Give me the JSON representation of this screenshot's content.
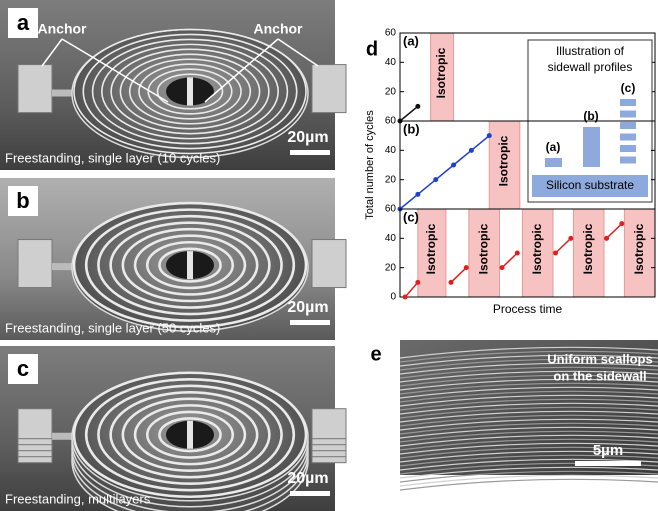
{
  "panels": [
    {
      "label": "a",
      "anchors": [
        "Anchor",
        "Anchor"
      ],
      "scale_bar": "20µm",
      "caption": "Freestanding, single layer (10 cycles)"
    },
    {
      "label": "b",
      "scale_bar": "20µm",
      "caption": "Freestanding, single layer (50 cycles)"
    },
    {
      "label": "c",
      "scale_bar": "20µm",
      "caption": "Freestanding, multilayers"
    },
    {
      "label": "d"
    },
    {
      "label": "e",
      "caption_lines": [
        "Uniform scallops",
        "on the sidewall"
      ],
      "scale_bar": "5µm"
    }
  ],
  "chart_data": [
    {
      "type": "line",
      "title": "(a)",
      "xlim": [
        0,
        100
      ],
      "ylim": [
        0,
        60
      ],
      "yticks": [
        20,
        40,
        60
      ],
      "x": [
        0,
        7
      ],
      "series": [
        {
          "color": "#111111",
          "values": [
            0,
            10
          ]
        }
      ],
      "shaded": [
        {
          "label": "Isotropic",
          "x": [
            12,
            21
          ]
        }
      ],
      "inset": {
        "title_lines": [
          "Illustration of",
          "sidewall profiles"
        ],
        "labels": [
          "(a)",
          "(b)",
          "(c)"
        ],
        "substrate": "Silicon substrate"
      }
    },
    {
      "type": "line",
      "title": "(b)",
      "ylabel": "Total number of cycles",
      "xlim": [
        0,
        100
      ],
      "ylim": [
        0,
        60
      ],
      "yticks": [
        20,
        40,
        60
      ],
      "x": [
        0,
        7,
        14,
        21,
        28,
        35
      ],
      "series": [
        {
          "color": "#1f3fd0",
          "values": [
            0,
            10,
            20,
            30,
            40,
            50
          ]
        }
      ],
      "shaded": [
        {
          "label": "Isotropic",
          "x": [
            35,
            47
          ]
        }
      ]
    },
    {
      "type": "line",
      "title": "(c)",
      "xlabel": "Process time",
      "xlim": [
        0,
        100
      ],
      "ylim": [
        0,
        60
      ],
      "yticks": [
        0,
        20,
        40,
        60
      ],
      "x": [
        2,
        7,
        null,
        20,
        26,
        null,
        40,
        46,
        null,
        61,
        67,
        null,
        81,
        87
      ],
      "series": [
        {
          "color": "#e02020",
          "values": [
            0,
            10,
            null,
            10,
            20,
            null,
            20,
            30,
            null,
            30,
            40,
            null,
            40,
            50
          ]
        }
      ],
      "shaded": [
        {
          "label": "Isotropic",
          "x": [
            7,
            18
          ]
        },
        {
          "label": "Isotropic",
          "x": [
            27,
            39
          ]
        },
        {
          "label": "Isotropic",
          "x": [
            48,
            60
          ]
        },
        {
          "label": "Isotropic",
          "x": [
            68,
            80
          ]
        },
        {
          "label": "Isotropic",
          "x": [
            88,
            100
          ]
        }
      ]
    }
  ]
}
